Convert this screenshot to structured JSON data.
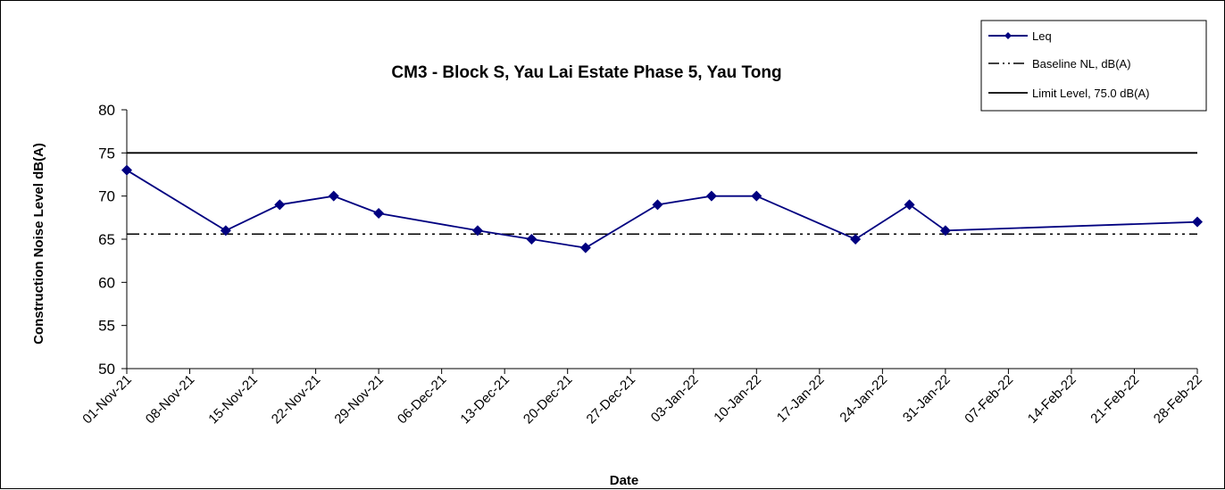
{
  "chart_data": {
    "type": "line",
    "title": "CM3 - Block S, Yau Lai Estate Phase 5, Yau Tong",
    "xlabel": "Date",
    "ylabel": "Construction Noise Level  dB(A)",
    "ylim": [
      50,
      80
    ],
    "yticks": [
      50,
      55,
      60,
      65,
      70,
      75,
      80
    ],
    "xticks": [
      "01-Nov-21",
      "08-Nov-21",
      "15-Nov-21",
      "22-Nov-21",
      "29-Nov-21",
      "06-Dec-21",
      "13-Dec-21",
      "20-Dec-21",
      "27-Dec-21",
      "03-Jan-22",
      "10-Jan-22",
      "17-Jan-22",
      "24-Jan-22",
      "31-Jan-22",
      "07-Feb-22",
      "14-Feb-22",
      "21-Feb-22",
      "28-Feb-22"
    ],
    "xlim": [
      "01-Nov-21",
      "28-Feb-22"
    ],
    "grid": false,
    "legend_position": "top-right",
    "series": [
      {
        "name": "Leq",
        "color": "#000080",
        "marker": "diamond",
        "x": [
          "01-Nov-21",
          "12-Nov-21",
          "18-Nov-21",
          "24-Nov-21",
          "29-Nov-21",
          "10-Dec-21",
          "16-Dec-21",
          "22-Dec-21",
          "30-Dec-21",
          "05-Jan-22",
          "10-Jan-22",
          "21-Jan-22",
          "27-Jan-22",
          "31-Jan-22",
          "28-Feb-22"
        ],
        "values": [
          73,
          66,
          69,
          70,
          68,
          66,
          65,
          64,
          69,
          70,
          70,
          65,
          69,
          66,
          67
        ]
      },
      {
        "name": "Baseline NL, dB(A)",
        "color": "#000000",
        "style": "dash-dot-dot",
        "constant": 65.6
      },
      {
        "name": "Limit Level, 75.0 dB(A)",
        "color": "#000000",
        "style": "solid",
        "constant": 75.0
      }
    ]
  }
}
